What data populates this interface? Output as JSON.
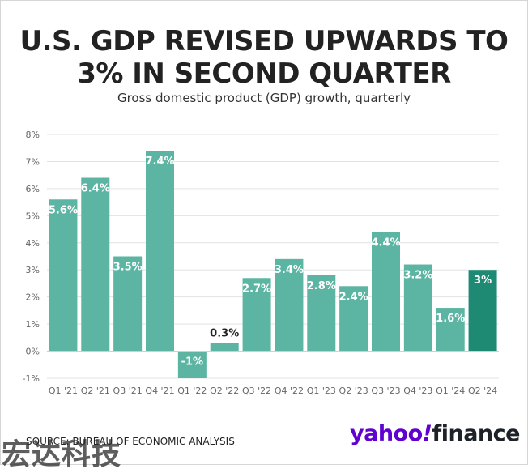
{
  "title_line1": "U.S. GDP REVISED UPWARDS TO",
  "title_line2": "3% IN SECOND QUARTER",
  "subtitle": "Gross domestic product (GDP) growth, quarterly",
  "source": "SOURCE: BUREAU OF ECONOMIC ANALYSIS",
  "logo": {
    "part1": "yahoo",
    "part2": "!",
    "part3": "finance"
  },
  "watermark": "宏达科技",
  "colors": {
    "bar": "#5cb5a2",
    "highlight": "#1e8a73",
    "label_light": "#ffffff",
    "label_dark": "#222222",
    "grid": "#e3e3e3",
    "axis_text": "#666666",
    "logo_purple": "#6001d2"
  },
  "chart_data": {
    "type": "bar",
    "categories": [
      "Q1 '21",
      "Q2 '21",
      "Q3 '21",
      "Q4 '21",
      "Q1 '22",
      "Q2 '22",
      "Q3 '22",
      "Q4 '22",
      "Q1 '23",
      "Q2 '23",
      "Q3 '23",
      "Q4 '23",
      "Q1 '24",
      "Q2 '24"
    ],
    "values": [
      5.6,
      6.4,
      3.5,
      7.4,
      -1,
      0.3,
      2.7,
      3.4,
      2.8,
      2.4,
      4.4,
      3.2,
      1.6,
      3
    ],
    "data_labels": [
      "5.6%",
      "6.4%",
      "3.5%",
      "7.4%",
      "-1%",
      "0.3%",
      "2.7%",
      "3.4%",
      "2.8%",
      "2.4%",
      "4.4%",
      "3.2%",
      "1.6%",
      "3%"
    ],
    "highlight_index": 13,
    "yticks": [
      -1,
      0,
      1,
      2,
      3,
      4,
      5,
      6,
      7,
      8
    ],
    "ytick_labels": [
      "-1%",
      "0%",
      "1%",
      "2%",
      "3%",
      "4%",
      "5%",
      "6%",
      "7%",
      "8%"
    ],
    "ylim": [
      -1,
      8
    ],
    "grid": true
  }
}
